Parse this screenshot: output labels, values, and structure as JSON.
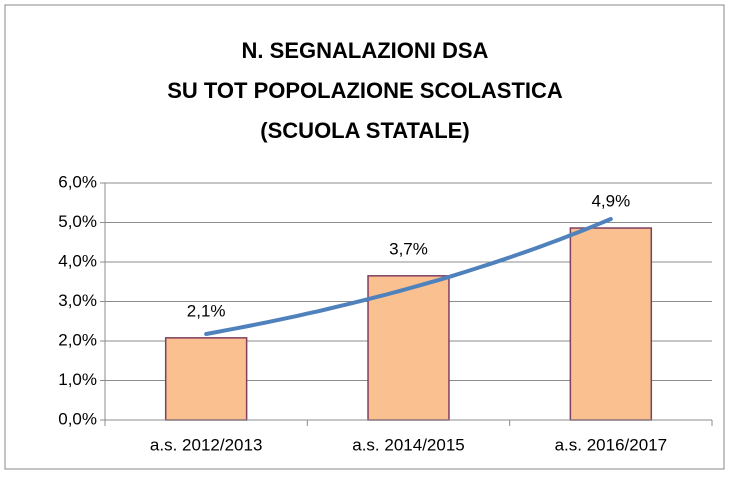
{
  "chart_data": {
    "type": "bar",
    "title": [
      "N. SEGNALAZIONI DSA",
      "SU TOT POPOLAZIONE SCOLASTICA",
      "(SCUOLA STATALE)"
    ],
    "categories": [
      "a.s. 2012/2013",
      "a.s. 2014/2015",
      "a.s. 2016/2017"
    ],
    "values": [
      2.08,
      3.65,
      4.86
    ],
    "value_labels": [
      "2,1%",
      "3,7%",
      "4,9%"
    ],
    "color": "#fac090",
    "edge_color": "#7f3f5f",
    "trendline": "exponential",
    "trendline_color": "#4f81bd",
    "ylim": [
      0,
      6
    ],
    "yticks": [
      {
        "value": 0,
        "label": "0,0%"
      },
      {
        "value": 1,
        "label": "1,0%"
      },
      {
        "value": 2,
        "label": "2,0%"
      },
      {
        "value": 3,
        "label": "3,0%"
      },
      {
        "value": 4,
        "label": "4,0%"
      },
      {
        "value": 5,
        "label": "5,0%"
      },
      {
        "value": 6,
        "label": "6,0%"
      }
    ],
    "grid": true
  }
}
